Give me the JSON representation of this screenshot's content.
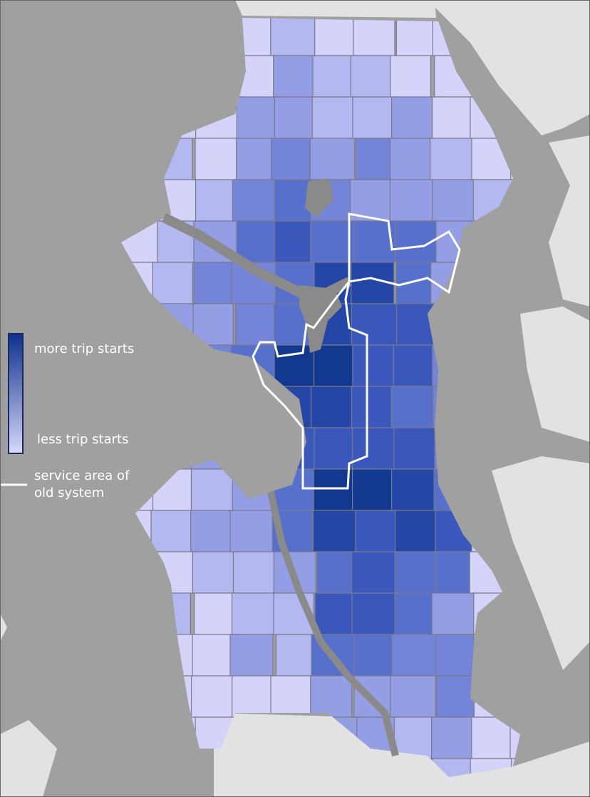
{
  "legend": {
    "more": "more trip starts",
    "less": "less trip starts",
    "service_area": [
      "service area of",
      "old system"
    ]
  }
}
